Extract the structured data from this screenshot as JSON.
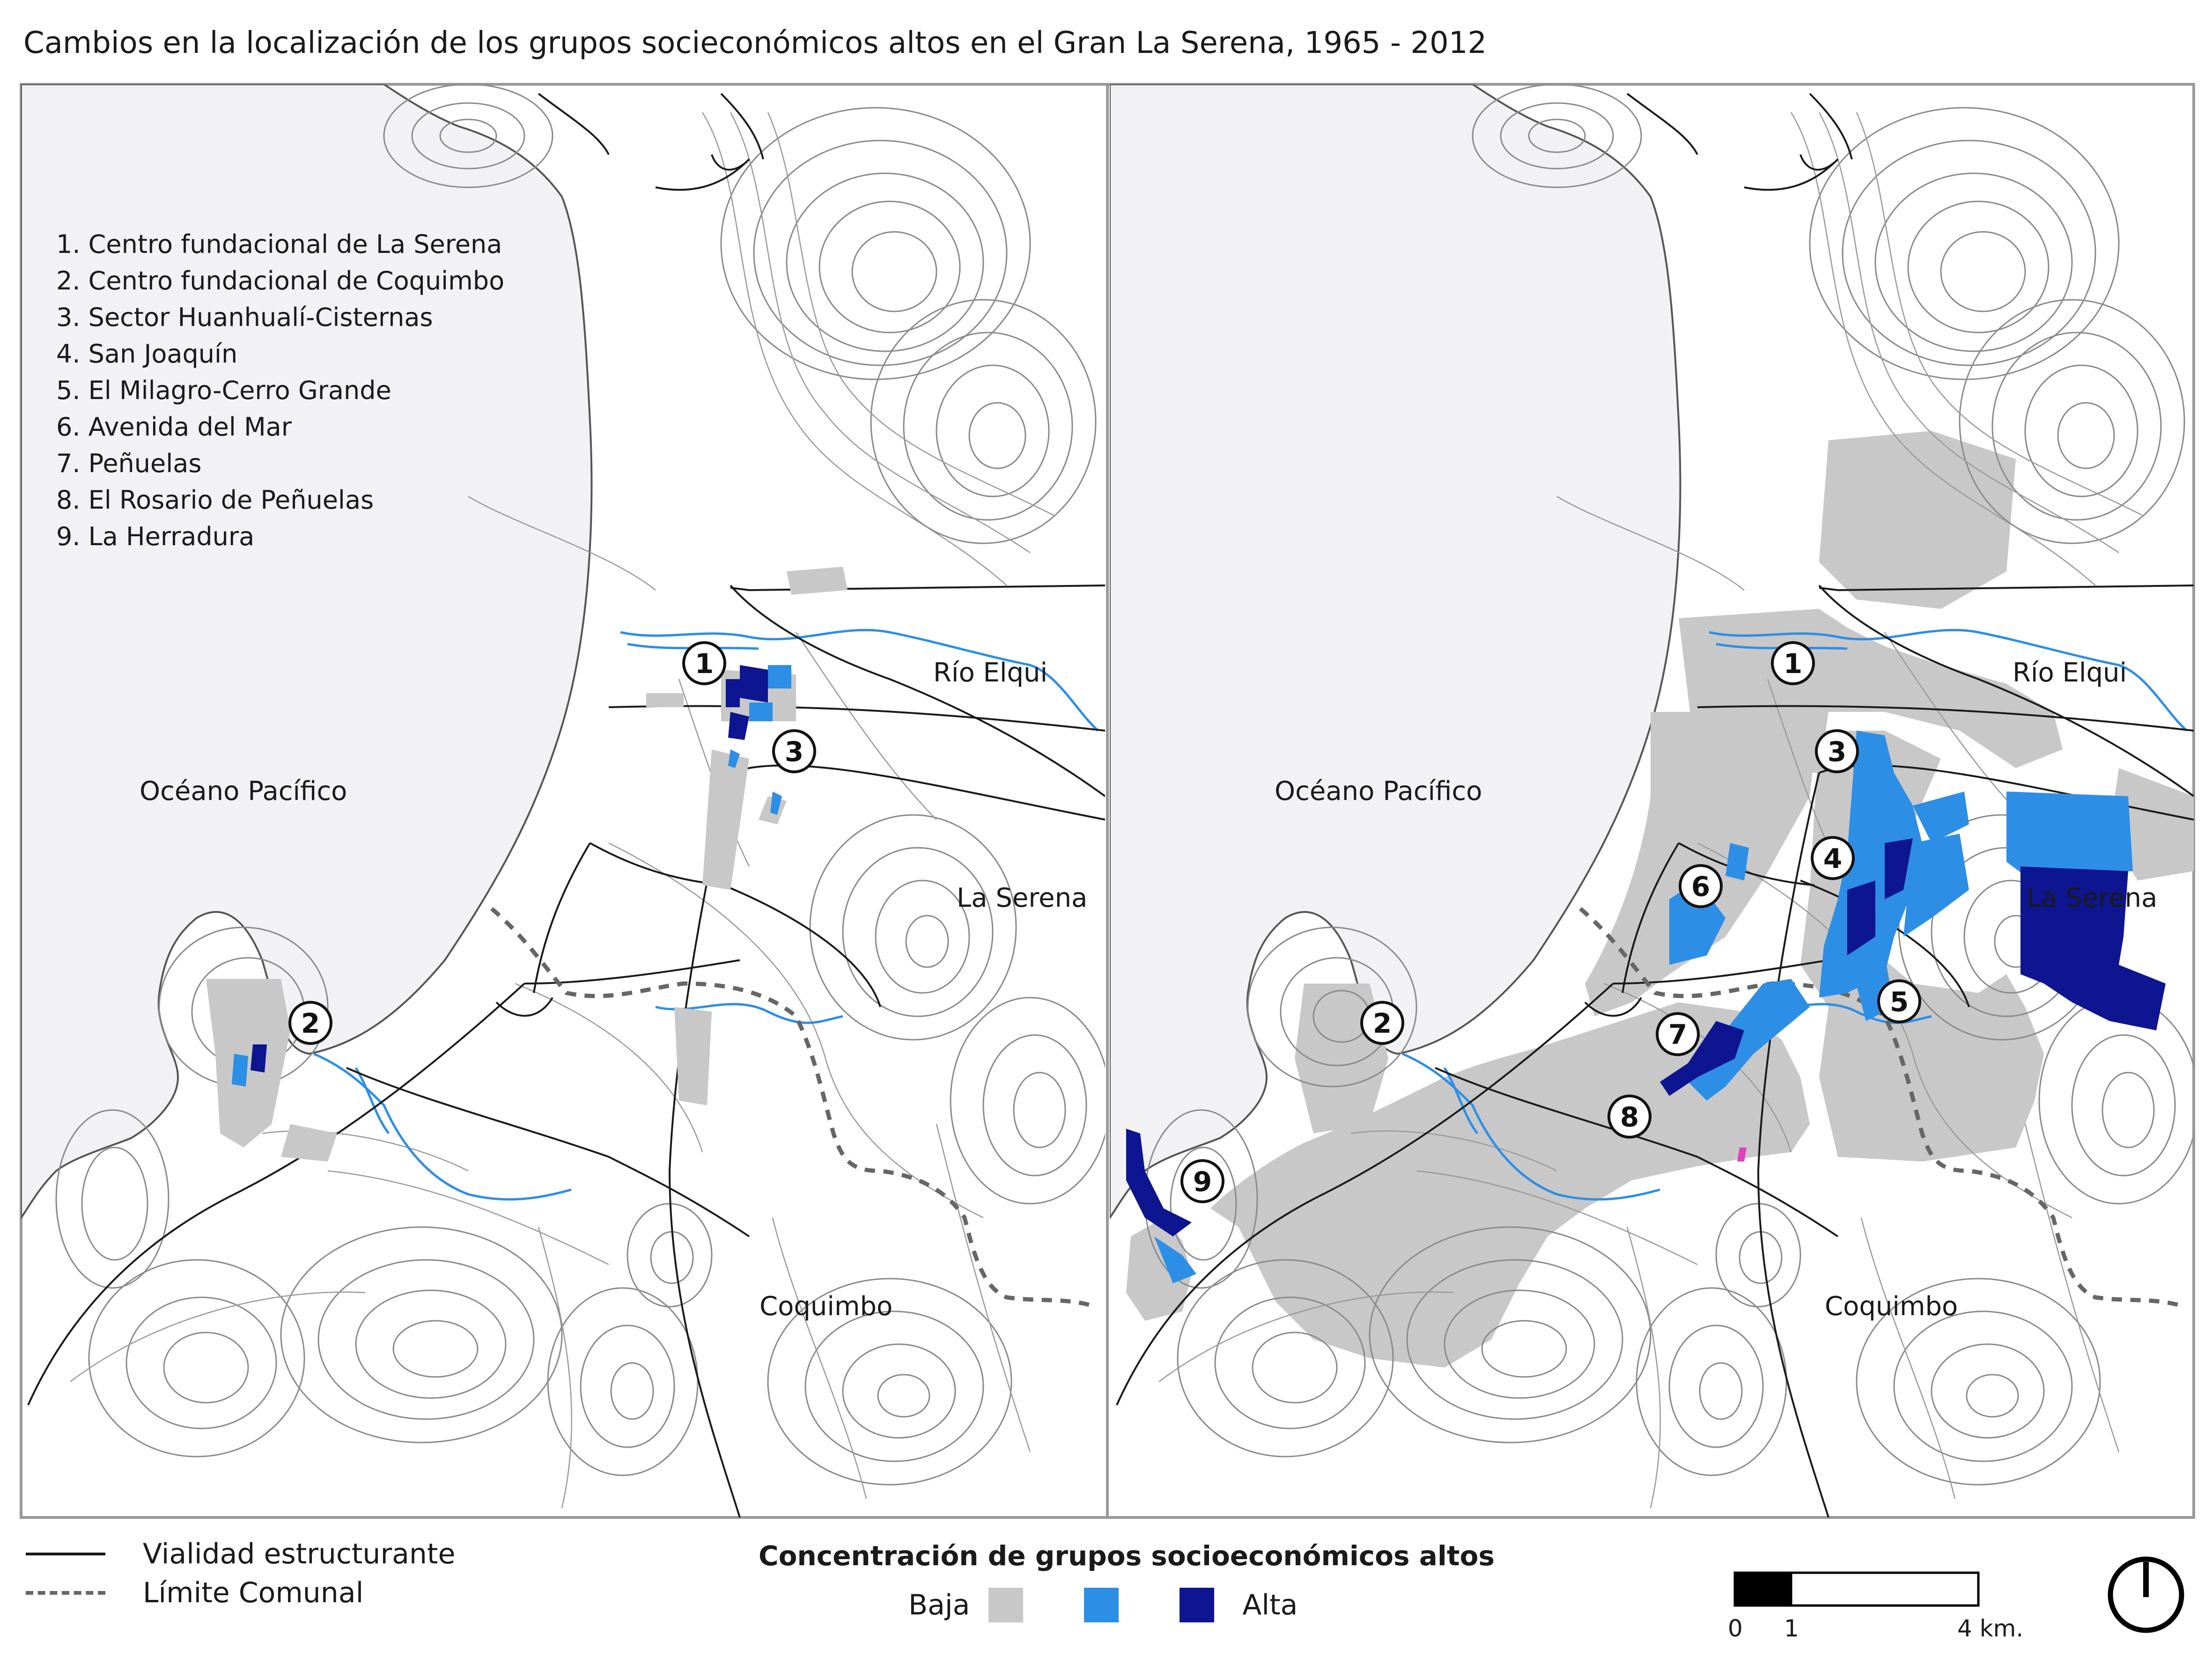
{
  "title": "Cambios en la localización de los grupos socieconómicos altos en el Gran La Serena, 1965 - 2012",
  "map_labels": {
    "ocean": "Océano Pacífico",
    "river": "Río Elqui",
    "la_serena": "La Serena",
    "coquimbo": "Coquimbo"
  },
  "sector_list": [
    "1. Centro fundacional de La Serena",
    "2. Centro fundacional de Coquimbo",
    "3. Sector Huanhualí-Cisternas",
    "4. San Joaquín",
    "5. El Milagro-Cerro Grande",
    "6. Avenida del Mar",
    "7. Peñuelas",
    "8. El Rosario de Peñuelas",
    "9. La Herradura"
  ],
  "markers_1965": [
    "1",
    "2",
    "3"
  ],
  "markers_2012": [
    "1",
    "2",
    "3",
    "4",
    "5",
    "6",
    "7",
    "8",
    "9"
  ],
  "legend": {
    "road_label": "Vialidad estructurante",
    "boundary_label": "Límite Comunal",
    "concentration_title": "Concentración de grupos socioeconómicos altos",
    "low_label": "Baja",
    "high_label": "Alta"
  },
  "scale": {
    "zero": "0",
    "one": "1",
    "end": "4 km."
  },
  "colors": {
    "ocean": "#f2f2f4",
    "low": "#c8c8c8",
    "medium": "#2d8ee6",
    "high": "#0d1590",
    "river": "#2d8ee6",
    "road": "#1a1a1a",
    "boundary": "#666666",
    "contour": "#8a8a8a"
  },
  "icons": {
    "north": "north-arrow-icon"
  }
}
